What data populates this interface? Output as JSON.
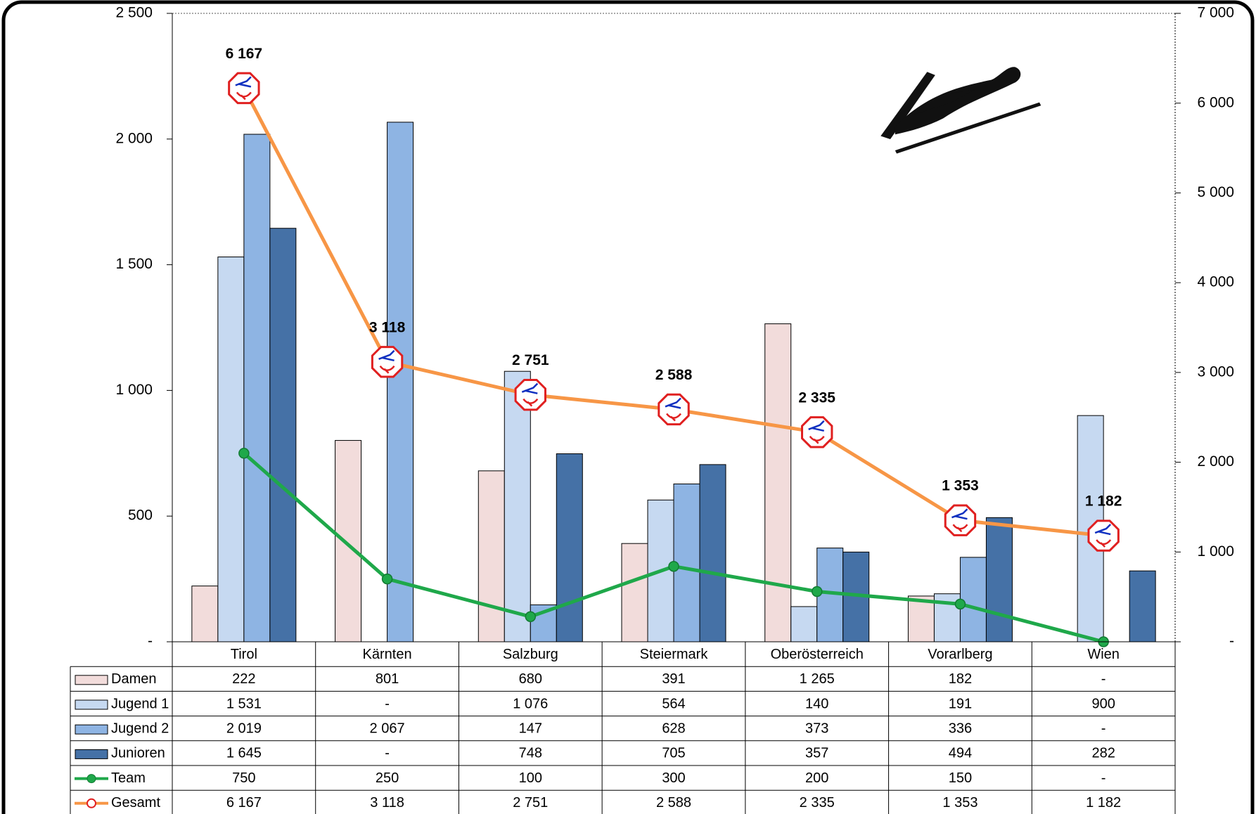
{
  "chart_data": {
    "type": "bar",
    "categories": [
      "Tirol",
      "Kärnten",
      "Salzburg",
      "Steiermark",
      "Oberösterreich",
      "Vorarlberg",
      "Wien"
    ],
    "series": [
      {
        "name": "Damen",
        "color": "#f2dcdb",
        "values": [
          222,
          801,
          680,
          391,
          1265,
          182,
          0
        ],
        "value_labels": [
          "222",
          "801",
          "680",
          "391",
          "1 265",
          "182",
          "-"
        ]
      },
      {
        "name": "Jugend 1",
        "color": "#c6d9f1",
        "values": [
          1531,
          0,
          1076,
          564,
          140,
          191,
          900
        ],
        "value_labels": [
          "1 531",
          "-",
          "1 076",
          "564",
          "140",
          "191",
          "900"
        ]
      },
      {
        "name": "Jugend 2",
        "color": "#8eb4e3",
        "values": [
          2019,
          2067,
          147,
          628,
          373,
          336,
          0
        ],
        "value_labels": [
          "2 019",
          "2 067",
          "147",
          "628",
          "373",
          "336",
          "-"
        ]
      },
      {
        "name": "Junioren",
        "color": "#4571a6",
        "values": [
          1645,
          0,
          748,
          705,
          357,
          494,
          282
        ],
        "value_labels": [
          "1 645",
          "-",
          "748",
          "705",
          "357",
          "494",
          "282"
        ]
      },
      {
        "name": "Team",
        "type": "line",
        "color": "#1fa84a",
        "values": [
          750,
          250,
          100,
          300,
          200,
          150,
          0
        ],
        "value_labels": [
          "750",
          "250",
          "100",
          "300",
          "200",
          "150",
          "-"
        ]
      },
      {
        "name": "Gesamt",
        "type": "line",
        "axis": "y2",
        "color": "#f79646",
        "values": [
          6167,
          3118,
          2751,
          2588,
          2335,
          1353,
          1182
        ],
        "value_labels": [
          "6 167",
          "3 118",
          "2 751",
          "2 588",
          "2 335",
          "1 353",
          "1 182"
        ]
      }
    ],
    "ylim": [
      0,
      2500
    ],
    "yticks": [
      {
        "value": 0,
        "label": "-"
      },
      500,
      {
        "value": 1000,
        "label": "1 000"
      },
      {
        "value": 1500,
        "label": "1 500"
      },
      {
        "value": 2000,
        "label": "2 000"
      },
      {
        "value": 2500,
        "label": "2 500"
      }
    ],
    "y2lim": [
      0,
      7000
    ],
    "y2ticks": [
      {
        "value": 0,
        "label": "-"
      },
      {
        "value": 1000,
        "label": "1 000"
      },
      {
        "value": 2000,
        "label": "2 000"
      },
      {
        "value": 3000,
        "label": "3 000"
      },
      {
        "value": 4000,
        "label": "4 000"
      },
      {
        "value": 5000,
        "label": "5 000"
      },
      {
        "value": 6000,
        "label": "6 000"
      },
      {
        "value": 7000,
        "label": "7 000"
      }
    ],
    "grid": false
  }
}
